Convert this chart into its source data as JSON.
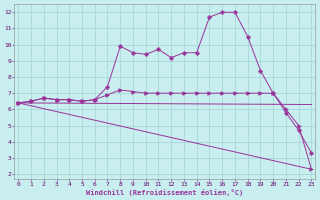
{
  "background_color": "#c8eef0",
  "line_color": "#993399",
  "grid_color": "#99cccc",
  "xlabel": "Windchill (Refroidissement éolien,°C)",
  "ylabel_ticks": [
    2,
    3,
    4,
    5,
    6,
    7,
    8,
    9,
    10,
    11,
    12
  ],
  "xlabel_ticks": [
    0,
    1,
    2,
    3,
    4,
    5,
    6,
    7,
    8,
    9,
    10,
    11,
    12,
    13,
    14,
    15,
    16,
    17,
    18,
    19,
    20,
    21,
    22,
    23
  ],
  "xlim": [
    -0.3,
    23.3
  ],
  "ylim": [
    1.7,
    12.5
  ],
  "series": [
    {
      "x": [
        0,
        1,
        2,
        3,
        4,
        5,
        6,
        7,
        8,
        9,
        10,
        11,
        12,
        13,
        14,
        15,
        16,
        17,
        18,
        19,
        20,
        21,
        22,
        23
      ],
      "y": [
        6.4,
        6.5,
        6.7,
        6.6,
        6.6,
        6.5,
        6.6,
        7.4,
        9.9,
        9.5,
        9.4,
        9.7,
        9.2,
        9.5,
        9.5,
        11.7,
        12.0,
        12.0,
        10.5,
        8.4,
        7.0,
        5.8,
        4.7,
        3.3
      ],
      "marker": "P",
      "markersize": 2.5
    },
    {
      "x": [
        0,
        1,
        2,
        3,
        4,
        5,
        6,
        7,
        8,
        9,
        10,
        11,
        12,
        13,
        14,
        15,
        16,
        17,
        18,
        19,
        20,
        21,
        22,
        23
      ],
      "y": [
        6.4,
        6.5,
        6.7,
        6.6,
        6.6,
        6.5,
        6.6,
        6.9,
        7.2,
        7.1,
        7.0,
        7.0,
        7.0,
        7.0,
        7.0,
        7.0,
        7.0,
        7.0,
        7.0,
        7.0,
        7.0,
        6.0,
        5.0,
        2.3
      ],
      "marker": ">",
      "markersize": 2.5
    },
    {
      "x": [
        0,
        23
      ],
      "y": [
        6.4,
        6.3
      ],
      "marker": null,
      "markersize": 0
    },
    {
      "x": [
        0,
        23
      ],
      "y": [
        6.4,
        2.3
      ],
      "marker": null,
      "markersize": 0
    }
  ],
  "title_color": "#993399",
  "title_fontsize": 4.5
}
